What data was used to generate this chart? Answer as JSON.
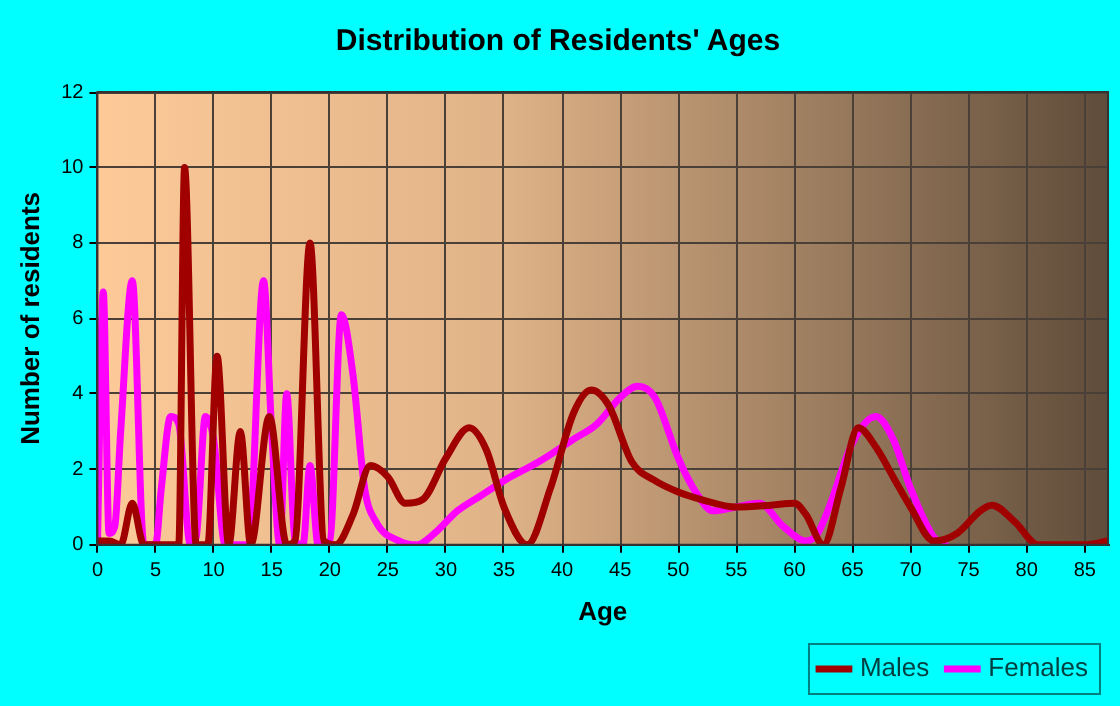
{
  "chart_data": {
    "type": "line",
    "title": "Distribution of Residents' Ages",
    "xlabel": "Age",
    "ylabel": "Number of residents",
    "xlim": [
      0,
      87
    ],
    "xticks": [
      0,
      5,
      10,
      15,
      20,
      25,
      30,
      35,
      40,
      45,
      50,
      55,
      60,
      65,
      70,
      75,
      80,
      85
    ],
    "ylim": [
      0,
      12
    ],
    "yticks": [
      0,
      2,
      4,
      6,
      8,
      10,
      12
    ],
    "grid": true,
    "legend": "bottom right",
    "marker": "none",
    "line_style": "solid",
    "series": [
      {
        "name": "Males",
        "color": "#a00000",
        "x": [
          0,
          1,
          2,
          3,
          4,
          5,
          6,
          7,
          7.5,
          8.5,
          9.5,
          10.3,
          11.3,
          12.3,
          13.2,
          14.8,
          16.3,
          17,
          18.3,
          19.5,
          20.5,
          22,
          23.5,
          25,
          26.5,
          28,
          30,
          32,
          33.5,
          35,
          37,
          39,
          41,
          42.5,
          44,
          46,
          48,
          50,
          52,
          55,
          58,
          60,
          61,
          62.5,
          64,
          65.5,
          67,
          68.5,
          70,
          72,
          74,
          76,
          77,
          79,
          81,
          85,
          87
        ],
        "values": [
          0.1,
          0.1,
          0,
          1.1,
          0,
          0,
          0,
          0,
          10,
          0,
          0,
          5,
          0,
          3,
          0,
          3.4,
          0,
          0.1,
          8,
          0.1,
          0,
          0.8,
          2.1,
          1.8,
          1.1,
          1.2,
          2.3,
          3.1,
          2.5,
          1,
          0,
          1.5,
          3.5,
          4.1,
          3.7,
          2.2,
          1.7,
          1.4,
          1.2,
          1,
          1.05,
          1.1,
          0.8,
          0,
          1.5,
          3.1,
          2.6,
          1.8,
          1,
          0.1,
          0.3,
          0.9,
          1.05,
          0.6,
          0,
          0,
          0.1
        ]
      },
      {
        "name": "Females",
        "color": "#ff00ff",
        "x": [
          0,
          0.5,
          1,
          1.5,
          2,
          3,
          4,
          5,
          5.5,
          6.3,
          7,
          8,
          8.5,
          9.3,
          10,
          11,
          13,
          14.3,
          15,
          15.7,
          16.3,
          17,
          17.7,
          18.3,
          19,
          20,
          21,
          22,
          23,
          24,
          26,
          27.5,
          29,
          31,
          33,
          35,
          38,
          41,
          43,
          45,
          46.5,
          48,
          50,
          51.5,
          53,
          55,
          57,
          59,
          61,
          62,
          63,
          65,
          67,
          68.5,
          70,
          72,
          73
        ],
        "values": [
          0,
          6.7,
          0.3,
          0.5,
          3,
          7,
          0,
          0,
          1.5,
          3.4,
          3.2,
          0,
          0.2,
          3.4,
          2.8,
          0,
          0,
          7,
          3,
          0,
          4,
          0.1,
          0,
          2.1,
          0,
          0.1,
          6.1,
          4.5,
          1.5,
          0.6,
          0.1,
          0,
          0.3,
          0.9,
          1.3,
          1.7,
          2.2,
          2.8,
          3.2,
          3.9,
          4.2,
          3.9,
          2.3,
          1.4,
          0.9,
          1,
          1.1,
          0.5,
          0.1,
          0.3,
          1,
          2.7,
          3.4,
          2.8,
          1.5,
          0.2,
          0
        ]
      }
    ]
  }
}
